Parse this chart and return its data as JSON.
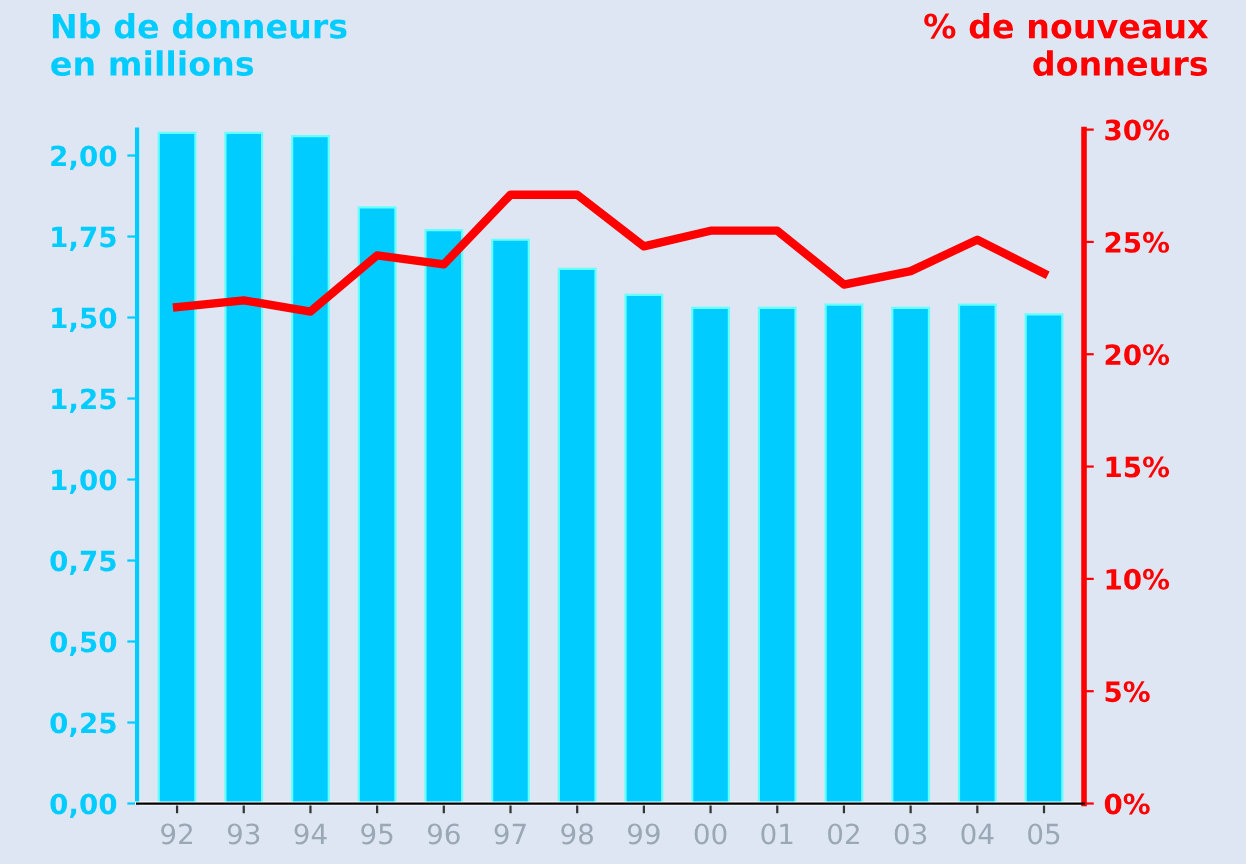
{
  "chart_data": {
    "type": "bar",
    "ylabel": "Nb de donneurs\nen millions",
    "y2label": "% de nouveaux\ndonneurs",
    "categories": [
      "92",
      "93",
      "94",
      "95",
      "96",
      "97",
      "98",
      "99",
      "00",
      "01",
      "02",
      "03",
      "04",
      "05"
    ],
    "series": [
      {
        "color": "#00ccff",
        "values": [
          2.07,
          2.07,
          2.06,
          1.84,
          1.77,
          1.74,
          1.65,
          1.57,
          1.53,
          1.53,
          1.54,
          1.53,
          1.54,
          1.51
        ]
      },
      {
        "type": "line",
        "axis": "y2",
        "color": "#ff0000",
        "values": [
          22.1,
          22.4,
          21.9,
          24.4,
          24.0,
          27.1,
          27.1,
          24.8,
          25.5,
          25.5,
          23.1,
          23.7,
          25.1,
          23.6
        ]
      }
    ],
    "ylim": [
      0,
      2.08
    ],
    "yticks": [
      {
        "value": 0,
        "label": "0,00"
      },
      {
        "value": 0.25,
        "label": "0,25"
      },
      {
        "value": 0.5,
        "label": "0,50"
      },
      {
        "value": 0.75,
        "label": "0,75"
      },
      {
        "value": 1.0,
        "label": "1,00"
      },
      {
        "value": 1.25,
        "label": "1,25"
      },
      {
        "value": 1.5,
        "label": "1,50"
      },
      {
        "value": 1.75,
        "label": "1,75"
      },
      {
        "value": 2.0,
        "label": "2,00"
      }
    ],
    "y2lim": [
      0,
      30
    ],
    "y2ticks": [
      {
        "value": 0,
        "label": "0%"
      },
      {
        "value": 5,
        "label": "5%"
      },
      {
        "value": 10,
        "label": "10%"
      },
      {
        "value": 15,
        "label": "15%"
      },
      {
        "value": 20,
        "label": "20%"
      },
      {
        "value": 25,
        "label": "25%"
      },
      {
        "value": 30,
        "label": "30%"
      }
    ],
    "grid": false,
    "legend": false,
    "marker": "none",
    "line_style": "solid"
  }
}
